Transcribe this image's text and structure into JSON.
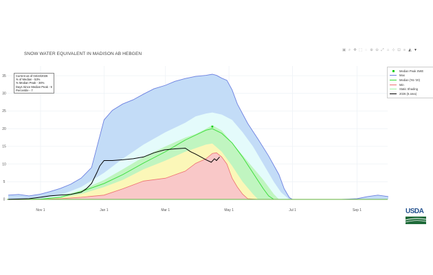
{
  "title": "SNOW WATER EQUIVALENT IN MADISON AB HEBGEN",
  "modebar": {
    "icons": [
      "camera-icon",
      "zoom-icon",
      "pan-icon",
      "box-select-icon",
      "lasso-icon",
      "zoom-in-icon",
      "zoom-out-icon",
      "autoscale-icon",
      "reset-axes-icon",
      "spike-lines-icon",
      "hover-closest-icon",
      "hover-compare-icon",
      "plotly-logo-icon",
      "toggle-icon"
    ]
  },
  "infobox": {
    "lines": [
      "Current as of 04/23/2026",
      "% of Median - 53%",
      "% Median Peak - 38%",
      "Days Since Median Peak - 9",
      "Percentile - 7"
    ]
  },
  "legend": {
    "items": [
      {
        "label": "Median Peak SWE",
        "type": "marker",
        "color": "#00cc00"
      },
      {
        "label": "Max",
        "type": "line",
        "color": "#6b7fe0"
      },
      {
        "label": "Median ('91-'20)",
        "type": "line",
        "color": "#33dd33"
      },
      {
        "label": "Min",
        "type": "line",
        "color": "#ee6f6f"
      },
      {
        "label": "Static Shading",
        "type": "line",
        "color": "#9ef09e"
      },
      {
        "label": "2026 (6 area)",
        "type": "line",
        "color": "#000000"
      }
    ]
  },
  "logo": {
    "text": "USDA"
  },
  "chart_data": {
    "type": "area",
    "title": "SNOW WATER EQUIVALENT IN MADISON AB HEBGEN",
    "xlabel": "",
    "ylabel": "",
    "ylim": [
      0,
      36
    ],
    "x_ticks": [
      {
        "label": "Nov 1",
        "day": 31
      },
      {
        "label": "Jan 1",
        "day": 92
      },
      {
        "label": "Mar 1",
        "day": 151
      },
      {
        "label": "May 1",
        "day": 212
      },
      {
        "label": "Jul 1",
        "day": 273
      },
      {
        "label": "Sep 1",
        "day": 335
      }
    ],
    "y_ticks": [
      0,
      5,
      10,
      15,
      20,
      25,
      30,
      35
    ],
    "grid": true,
    "legend_position": "right",
    "x_unit": "days since Oct 1",
    "colors": {
      "max_fill": "#c3dcf7",
      "p90_fill": "#e4fbfb",
      "p70_fill": "#c0f5c0",
      "p30_fill": "#fbf7b8",
      "p10_fill": "#f9c8c8",
      "max_line": "#6b7fe0",
      "median_line": "#33dd33",
      "min_line": "#ee6f6f",
      "current_line": "#000000",
      "marker": "#00cc00"
    },
    "median_peak": {
      "day": 196,
      "value": 20.6
    },
    "series": [
      {
        "name": "Max",
        "x": [
          0,
          10,
          20,
          31,
          40,
          50,
          60,
          70,
          80,
          92,
          100,
          110,
          120,
          130,
          140,
          151,
          160,
          170,
          180,
          190,
          196,
          200,
          205,
          210,
          215,
          220,
          230,
          240,
          250,
          260,
          265,
          270,
          273,
          280,
          300,
          320,
          335,
          345,
          355,
          365
        ],
        "values": [
          1.2,
          1.4,
          1.0,
          1.5,
          2.2,
          3.1,
          4.3,
          6.0,
          9.0,
          22.5,
          25.2,
          27.0,
          28.2,
          29.8,
          31.3,
          32.3,
          33.4,
          34.2,
          34.8,
          35.1,
          35.4,
          35.1,
          34.3,
          33.7,
          31.0,
          27.0,
          21.5,
          17.0,
          12.3,
          7.0,
          3.0,
          0.5,
          0,
          0,
          0,
          0,
          0.2,
          0.8,
          1.2,
          0.8
        ]
      },
      {
        "name": "90th Percentile",
        "x": [
          0,
          31,
          50,
          70,
          92,
          110,
          130,
          151,
          170,
          180,
          190,
          196,
          205,
          215,
          225,
          235,
          245,
          255,
          262,
          270
        ],
        "values": [
          0,
          0.3,
          1.2,
          3.5,
          7.5,
          11.5,
          15.5,
          19.0,
          21.7,
          23.5,
          24.3,
          24.6,
          24.0,
          22.5,
          19.0,
          15.0,
          10.0,
          5.0,
          2.0,
          0
        ]
      },
      {
        "name": "70th Percentile",
        "x": [
          0,
          31,
          50,
          70,
          92,
          110,
          130,
          151,
          170,
          180,
          190,
          196,
          205,
          215,
          225,
          235,
          245,
          255,
          260
        ],
        "values": [
          0,
          0.2,
          0.8,
          2.6,
          5.5,
          8.5,
          12.0,
          15.0,
          17.5,
          18.5,
          20.0,
          21.0,
          19.5,
          16.0,
          12.5,
          9.0,
          5.5,
          1.5,
          0
        ]
      },
      {
        "name": "Median ('91-'20)",
        "x": [
          0,
          31,
          50,
          70,
          92,
          110,
          130,
          151,
          170,
          180,
          190,
          196,
          205,
          215,
          225,
          235,
          245,
          250,
          255
        ],
        "values": [
          0,
          0.1,
          0.6,
          2.2,
          4.5,
          7.0,
          10.3,
          13.5,
          16.8,
          18.2,
          19.6,
          20.0,
          18.7,
          16.0,
          12.0,
          7.5,
          3.0,
          1.0,
          0
        ]
      },
      {
        "name": "30th Percentile",
        "x": [
          0,
          31,
          50,
          70,
          92,
          110,
          130,
          151,
          170,
          180,
          190,
          196,
          205,
          215,
          225,
          235,
          240
        ],
        "values": [
          0,
          0.1,
          0.4,
          1.5,
          3.5,
          5.5,
          8.5,
          11.0,
          13.5,
          14.5,
          15.5,
          15.8,
          13.5,
          9.5,
          5.0,
          1.5,
          0
        ]
      },
      {
        "name": "Min",
        "x": [
          0,
          31,
          50,
          70,
          92,
          110,
          130,
          151,
          170,
          180,
          190,
          196,
          200,
          205,
          210,
          215,
          220,
          225,
          230,
          240
        ],
        "values": [
          0,
          0,
          0.2,
          0.6,
          1.2,
          3.0,
          5.2,
          6.0,
          8.0,
          10.2,
          11.5,
          13.0,
          13.2,
          12.0,
          10.0,
          6.0,
          3.5,
          1.5,
          0.2,
          0
        ]
      },
      {
        "name": "2026 (6 area)",
        "x": [
          0,
          20,
          31,
          40,
          50,
          60,
          70,
          75,
          80,
          85,
          88,
          92,
          100,
          110,
          120,
          130,
          140,
          150,
          160,
          170,
          175,
          180,
          185,
          190,
          195,
          198,
          200,
          203
        ],
        "values": [
          0,
          0.2,
          0.6,
          1.0,
          1.2,
          1.4,
          2.0,
          3.0,
          4.5,
          7.5,
          9.5,
          11.0,
          11.0,
          11.2,
          11.5,
          12.0,
          13.2,
          14.0,
          14.3,
          14.5,
          13.5,
          12.8,
          12.0,
          11.2,
          10.5,
          11.5,
          11.0,
          12.0
        ]
      }
    ]
  }
}
